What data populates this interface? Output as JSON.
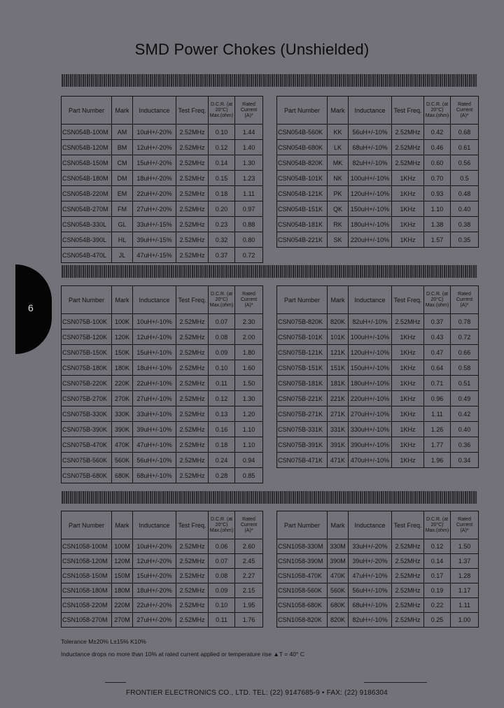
{
  "title": "SMD Power Chokes (Unshielded)",
  "page_tab": "6",
  "headers": {
    "part_number": "Part Number",
    "mark": "Mark",
    "inductance": "Inductance",
    "test_freq": "Test Freq.",
    "dcr": "D.C.R. (at 20°C) Max.(ohm)",
    "rated_current": "Rated Current (A)*"
  },
  "tables": [
    {
      "rows": [
        [
          "CSN054B-100M",
          "AM",
          "10uH+/-20%",
          "2.52MHz",
          "0.10",
          "1.44"
        ],
        [
          "CSN054B-120M",
          "BM",
          "12uH+/-20%",
          "2.52MHz",
          "0.12",
          "1.40"
        ],
        [
          "CSN054B-150M",
          "CM",
          "15uH+/-20%",
          "2.52MHz",
          "0.14",
          "1.30"
        ],
        [
          "CSN054B-180M",
          "DM",
          "18uH+/-20%",
          "2.52MHz",
          "0.15",
          "1.23"
        ],
        [
          "CSN054B-220M",
          "EM",
          "22uH+/-20%",
          "2.52MHz",
          "0.18",
          "1.11"
        ],
        [
          "CSN054B-270M",
          "FM",
          "27uH+/-20%",
          "2.52MHz",
          "0.20",
          "0.97"
        ],
        [
          "CSN054B-330L",
          "GL",
          "33uH+/-15%",
          "2.52MHz",
          "0.23",
          "0.88"
        ],
        [
          "CSN054B-390L",
          "HL",
          "39uH+/-15%",
          "2.52MHz",
          "0.32",
          "0.80"
        ],
        [
          "CSN054B-470L",
          "JL",
          "47uH+/-15%",
          "2.52MHz",
          "0.37",
          "0.72"
        ]
      ]
    },
    {
      "rows": [
        [
          "CSN054B-560K",
          "KK",
          "56uH+/-10%",
          "2.52MHz",
          "0.42",
          "0.68"
        ],
        [
          "CSN054B-680K",
          "LK",
          "68uH+/-10%",
          "2.52MHz",
          "0.46",
          "0.61"
        ],
        [
          "CSN054B-820K",
          "MK",
          "82uH+/-10%",
          "2.52MHz",
          "0.60",
          "0.56"
        ],
        [
          "CSN054B-101K",
          "NK",
          "100uH+/-10%",
          "1KHz",
          "0.70",
          "0.5"
        ],
        [
          "CSN054B-121K",
          "PK",
          "120uH+/-10%",
          "1KHz",
          "0.93",
          "0.48"
        ],
        [
          "CSN054B-151K",
          "QK",
          "150uH+/-10%",
          "1KHz",
          "1.10",
          "0.40"
        ],
        [
          "CSN054B-181K",
          "RK",
          "180uH+/-10%",
          "1KHz",
          "1.38",
          "0.38"
        ],
        [
          "CSN054B-221K",
          "SK",
          "220uH+/-10%",
          "1KHz",
          "1.57",
          "0.35"
        ]
      ]
    },
    {
      "rows": [
        [
          "CSN075B-100K",
          "100K",
          "10uH+/-10%",
          "2.52MHz",
          "0.07",
          "2.30"
        ],
        [
          "CSN075B-120K",
          "120K",
          "12uH+/-10%",
          "2.52MHz",
          "0.08",
          "2.00"
        ],
        [
          "CSN075B-150K",
          "150K",
          "15uH+/-10%",
          "2.52MHz",
          "0.09",
          "1.80"
        ],
        [
          "CSN075B-180K",
          "180K",
          "18uH+/-10%",
          "2.52MHz",
          "0.10",
          "1.60"
        ],
        [
          "CSN075B-220K",
          "220K",
          "22uH+/-10%",
          "2.52MHz",
          "0.11",
          "1.50"
        ],
        [
          "CSN075B-270K",
          "270K",
          "27uH+/-10%",
          "2.52MHz",
          "0.12",
          "1.30"
        ],
        [
          "CSN075B-330K",
          "330K",
          "33uH+/-10%",
          "2.52MHz",
          "0.13",
          "1.20"
        ],
        [
          "CSN075B-390K",
          "390K",
          "39uH+/-10%",
          "2.52MHz",
          "0.16",
          "1.10"
        ],
        [
          "CSN075B-470K",
          "470K",
          "47uH+/-10%",
          "2.52MHz",
          "0.18",
          "1.10"
        ],
        [
          "CSN075B-560K",
          "560K",
          "56uH+/-10%",
          "2.52MHz",
          "0.24",
          "0.94"
        ],
        [
          "CSN075B-680K",
          "680K",
          "68uH+/-10%",
          "2.52MHz",
          "0.28",
          "0.85"
        ]
      ]
    },
    {
      "rows": [
        [
          "CSN075B-820K",
          "820K",
          "82uH+/-10%",
          "2.52MHz",
          "0.37",
          "0.78"
        ],
        [
          "CSN075B-101K",
          "101K",
          "100uH+/-10%",
          "1KHz",
          "0.43",
          "0.72"
        ],
        [
          "CSN075B-121K",
          "121K",
          "120uH+/-10%",
          "1KHz",
          "0.47",
          "0.66"
        ],
        [
          "CSN075B-151K",
          "151K",
          "150uH+/-10%",
          "1KHz",
          "0.64",
          "0.58"
        ],
        [
          "CSN075B-181K",
          "181K",
          "180uH+/-10%",
          "1KHz",
          "0.71",
          "0.51"
        ],
        [
          "CSN075B-221K",
          "221K",
          "220uH+/-10%",
          "1KHz",
          "0.96",
          "0.49"
        ],
        [
          "CSN075B-271K",
          "271K",
          "270uH+/-10%",
          "1KHz",
          "1.11",
          "0.42"
        ],
        [
          "CSN075B-331K",
          "331K",
          "330uH+/-10%",
          "1KHz",
          "1.26",
          "0.40"
        ],
        [
          "CSN075B-391K",
          "391K",
          "390uH+/-10%",
          "1KHz",
          "1.77",
          "0.36"
        ],
        [
          "CSN075B-471K",
          "471K",
          "470uH+/-10%",
          "1KHz",
          "1.96",
          "0.34"
        ]
      ]
    },
    {
      "rows": [
        [
          "CSN1058-100M",
          "100M",
          "10uH+/-20%",
          "2.52MHz",
          "0.06",
          "2.60"
        ],
        [
          "CSN1058-120M",
          "120M",
          "12uH+/-20%",
          "2.52MHz",
          "0.07",
          "2.45"
        ],
        [
          "CSN1058-150M",
          "150M",
          "15uH+/-20%",
          "2.52MHz",
          "0.08",
          "2.27"
        ],
        [
          "CSN1058-180M",
          "180M",
          "18uH+/-20%",
          "2.52MHz",
          "0.09",
          "2.15"
        ],
        [
          "CSN1058-220M",
          "220M",
          "22uH+/-20%",
          "2.52MHz",
          "0.10",
          "1.95"
        ],
        [
          "CSN1058-270M",
          "270M",
          "27uH+/-20%",
          "2.52MHz",
          "0.11",
          "1.76"
        ]
      ]
    },
    {
      "rows": [
        [
          "CSN1058-330M",
          "330M",
          "33uH+/-20%",
          "2.52MHz",
          "0.12",
          "1.50"
        ],
        [
          "CSN1058-390M",
          "390M",
          "39uH+/-20%",
          "2.52MHz",
          "0.14",
          "1.37"
        ],
        [
          "CSN1058-470K",
          "470K",
          "47uH+/-10%",
          "2.52MHz",
          "0.17",
          "1.28"
        ],
        [
          "CSN1058-560K",
          "560K",
          "56uH+/-10%",
          "2.52MHz",
          "0.19",
          "1.17"
        ],
        [
          "CSN1058-680K",
          "680K",
          "68uH+/-10%",
          "2.52MHz",
          "0.22",
          "1.11"
        ],
        [
          "CSN1058-820K",
          "820K",
          "82uH+/-10%",
          "2.52MHz",
          "0.25",
          "1.00"
        ]
      ]
    }
  ],
  "notes": {
    "tolerance": "Tolerance  M±20%  L±15%  K10%",
    "inductance_drop": "Inductance drops no more than 10% at rated current applied or temperature rise ▲T = 40° C"
  },
  "footer": "FRONTIER ELECTRONICS CO., LTD.  TEL: (22) 9147685-9 • FAX: (22) 9186304"
}
